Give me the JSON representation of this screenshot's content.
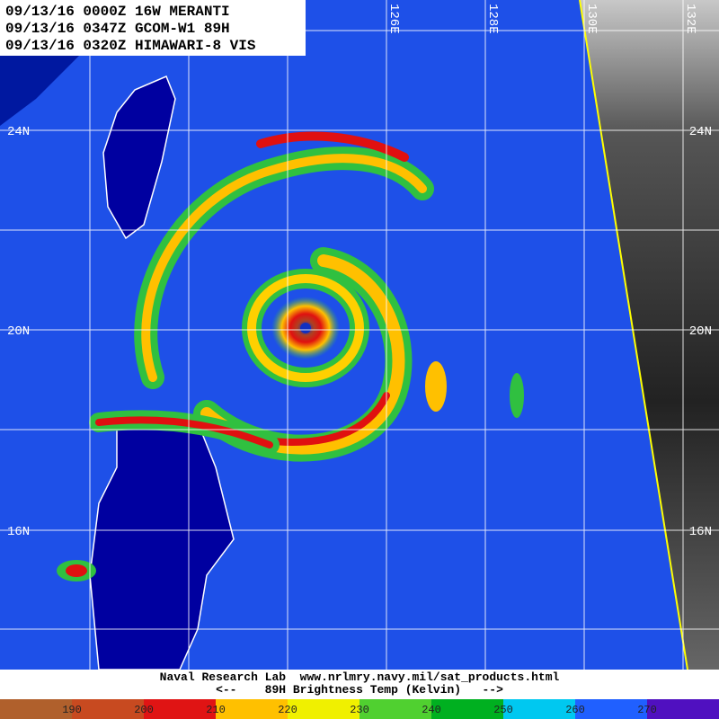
{
  "header": {
    "lines": [
      "09/13/16 0000Z 16W MERANTI",
      "09/13/16 0347Z GCOM-W1 89H",
      "09/13/16 0320Z HIMAWARI-8 VIS"
    ]
  },
  "grid": {
    "lat_labels": [
      "24N",
      "20N",
      "16N"
    ],
    "lon_labels": [
      "126E",
      "128E",
      "130E",
      "132E"
    ]
  },
  "footer": {
    "credit": "Naval Research Lab  www.nrlmry.navy.mil/sat_products.html",
    "scale_title": "<--    89H Brightness Temp (Kelvin)   -->"
  },
  "colorbar": {
    "range": [
      180,
      280
    ],
    "ticks": [
      190,
      200,
      210,
      220,
      230,
      240,
      250,
      260,
      270
    ],
    "colors": [
      "#b0602c",
      "#c84a20",
      "#e01414",
      "#ffc000",
      "#f0f000",
      "#50d030",
      "#00b020",
      "#00c8f0",
      "#2060ff",
      "#5010c0"
    ]
  }
}
